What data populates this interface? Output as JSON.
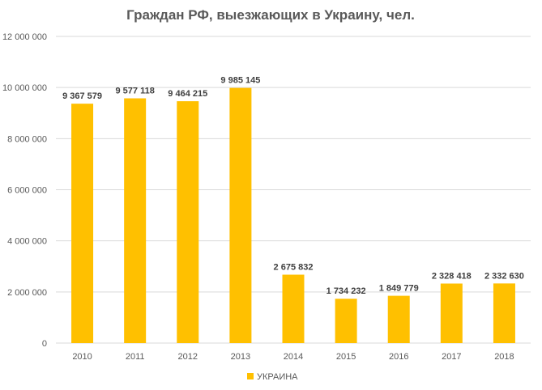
{
  "colors": {
    "bar": "#FFC000",
    "grid": "#D9D9D9",
    "text": "#595959"
  },
  "chart_data": {
    "type": "bar",
    "title": "Граждан РФ, выезжающих в Украину, чел.",
    "categories": [
      "2010",
      "2011",
      "2012",
      "2013",
      "2014",
      "2015",
      "2016",
      "2017",
      "2018"
    ],
    "series": [
      {
        "name": "УКРАИНА",
        "values": [
          9367579,
          9577118,
          9464215,
          9985145,
          2675832,
          1734232,
          1849779,
          2328418,
          2332630
        ],
        "labels": [
          "9 367 579",
          "9 577 118",
          "9 464 215",
          "9 985 145",
          "2 675 832",
          "1 734 232",
          "1 849 779",
          "2 328 418",
          "2 332 630"
        ]
      }
    ],
    "ylim": [
      0,
      12000000
    ],
    "yticks": [
      0,
      2000000,
      4000000,
      6000000,
      8000000,
      10000000,
      12000000
    ],
    "ytick_labels": [
      "0",
      "2 000 000",
      "4 000 000",
      "6 000 000",
      "8 000 000",
      "10 000 000",
      "12 000 000"
    ],
    "grid": true,
    "legend_position": "bottom"
  }
}
